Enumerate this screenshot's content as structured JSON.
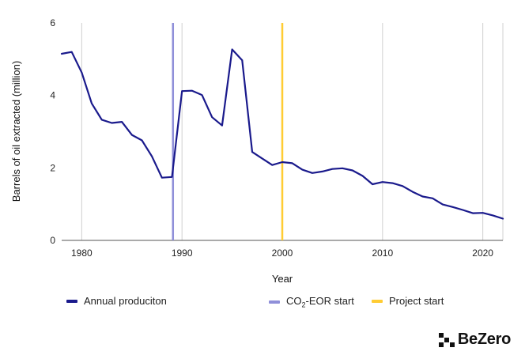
{
  "chart_data": {
    "type": "line",
    "xlabel": "Year",
    "ylabel": "Barrels of oil extracted (million)",
    "xlim": [
      1978,
      2022
    ],
    "ylim": [
      0,
      6
    ],
    "xticks": [
      1980,
      1990,
      2000,
      2010,
      2020
    ],
    "yticks": [
      0,
      2,
      4,
      6
    ],
    "grid": "vertical",
    "series": [
      {
        "name": "Annual produciton",
        "color": "#1a1a8c",
        "x": [
          1978,
          1979,
          1980,
          1981,
          1982,
          1983,
          1984,
          1985,
          1986,
          1987,
          1988,
          1989,
          1990,
          1991,
          1992,
          1993,
          1994,
          1995,
          1996,
          1997,
          1998,
          1999,
          2000,
          2001,
          2002,
          2003,
          2004,
          2005,
          2006,
          2007,
          2008,
          2009,
          2010,
          2011,
          2012,
          2013,
          2014,
          2015,
          2016,
          2017,
          2018,
          2019,
          2020,
          2021,
          2022
        ],
        "y": [
          5.15,
          5.2,
          4.63,
          3.78,
          3.33,
          3.24,
          3.27,
          2.91,
          2.76,
          2.32,
          1.73,
          1.75,
          4.12,
          4.13,
          4.01,
          3.4,
          3.17,
          5.27,
          4.97,
          2.44,
          2.26,
          2.08,
          2.16,
          2.13,
          1.95,
          1.86,
          1.9,
          1.97,
          1.99,
          1.93,
          1.78,
          1.55,
          1.61,
          1.58,
          1.5,
          1.34,
          1.21,
          1.16,
          0.99,
          0.92,
          0.84,
          0.75,
          0.76,
          0.69,
          0.6
        ]
      }
    ],
    "markers": [
      {
        "name": "CO2-EOR start",
        "x": 1989.1,
        "color": "#8f8fd9"
      },
      {
        "name": "Project start",
        "x": 2000,
        "color": "#ffcc33"
      }
    ]
  },
  "legend": {
    "annual": "Annual produciton",
    "co2_prefix": "CO",
    "co2_sub": "2",
    "co2_suffix": "-EOR start",
    "project": "Project start"
  },
  "brand": {
    "name": "BeZero"
  },
  "colors": {
    "series": "#1a1a8c",
    "co2": "#8f8fd9",
    "project": "#ffcc33",
    "grid": "#d0d0d0",
    "axis": "#555555"
  }
}
